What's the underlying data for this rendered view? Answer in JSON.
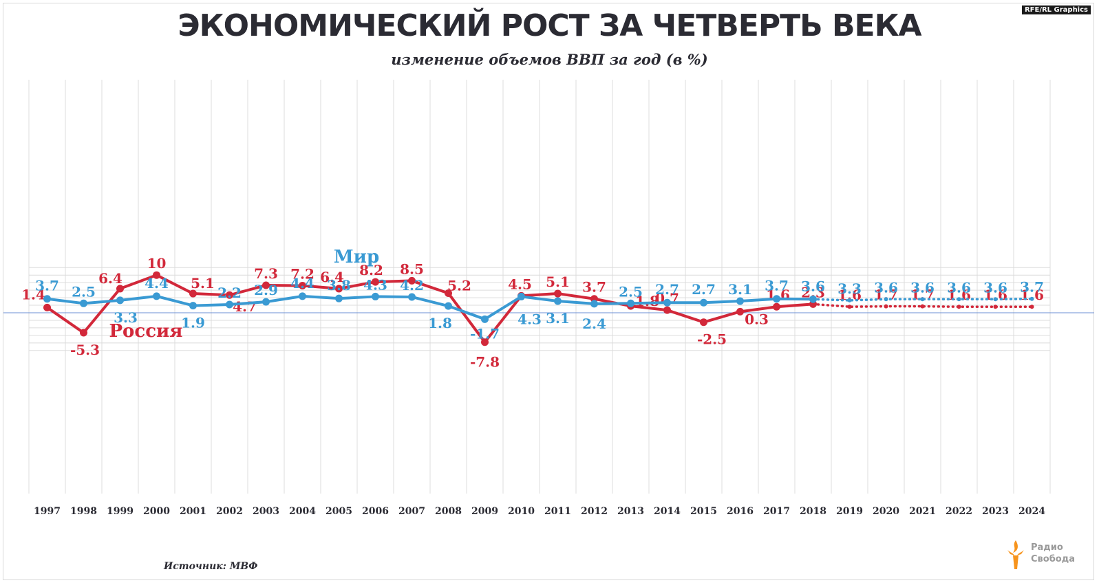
{
  "credit": "RFE/RL Graphics",
  "title": "ЭКОНОМИЧЕСКИЙ РОСТ ЗА ЧЕТВЕРТЬ ВЕКА",
  "subtitle": "изменение объемов ВВП за год (в %)",
  "source": "Источник: МВФ",
  "logo": {
    "line1": "Радио",
    "line2": "Свобода"
  },
  "colors": {
    "russia": "#d2283a",
    "world": "#3a9ad3",
    "zero_line": "#6b8fd6",
    "grid": "#dcdcdc",
    "text": "#2b2b33"
  },
  "chart_data": {
    "type": "line",
    "title": "ЭКОНОМИЧЕСКИЙ РОСТ ЗА ЧЕТВЕРТЬ ВЕКА",
    "subtitle": "изменение объемов ВВП за год (в %)",
    "x": [
      "1997",
      "1998",
      "1999",
      "2000",
      "2001",
      "2002",
      "2003",
      "2004",
      "2005",
      "2006",
      "2007",
      "2008",
      "2009",
      "2010",
      "2011",
      "2012",
      "2013",
      "2014",
      "2015",
      "2016",
      "2017",
      "2018",
      "2019",
      "2020",
      "2021",
      "2022",
      "2023",
      "2024"
    ],
    "ylim": [
      -10,
      12
    ],
    "grid": true,
    "forecast_from": "2018",
    "series": [
      {
        "name": "Россия",
        "values": [
          1.4,
          -5.3,
          6.4,
          10,
          5.1,
          4.7,
          7.3,
          7.2,
          6.4,
          8.2,
          8.5,
          5.2,
          -7.8,
          4.5,
          5.1,
          3.7,
          1.8,
          0.7,
          -2.5,
          0.3,
          1.6,
          2.3,
          1.6,
          1.7,
          1.7,
          1.6,
          1.6,
          1.6
        ],
        "labels": [
          "1.4",
          "-5.3",
          "6.4",
          "10",
          "5.1",
          "4.7",
          "7.3",
          "7.2",
          "6.4",
          "8.2",
          "8.5",
          "5.2",
          "-7.8",
          "4.5",
          "5.1",
          "3.7",
          "1.8",
          "0.7",
          "-2.5",
          "0.3",
          "1.6",
          "2.3",
          "1.6",
          "1.7",
          "1.7",
          "1.6",
          "1.6",
          "1.6"
        ]
      },
      {
        "name": "Мир",
        "values": [
          3.7,
          2.5,
          3.3,
          4.4,
          1.9,
          2.2,
          2.9,
          4.4,
          3.8,
          4.3,
          4.2,
          1.8,
          -1.7,
          4.3,
          3.1,
          2.4,
          2.5,
          2.7,
          2.7,
          3.1,
          3.7,
          3.6,
          3.3,
          3.6,
          3.6,
          3.6,
          3.6,
          3.7
        ],
        "labels": [
          "3.7",
          "2.5",
          "3.3",
          "4.4",
          "1.9",
          "2.2",
          "2.9",
          "4.4",
          "3.8",
          "4.3",
          "4.2",
          "1.8",
          "-1.7",
          "4.3",
          "3.1",
          "2.4",
          "2.5",
          "2.7",
          "2.7",
          "3.1",
          "3.7",
          "3.6",
          "3.3",
          "3.6",
          "3.6",
          "3.6",
          "3.6",
          "3.7"
        ]
      }
    ]
  }
}
